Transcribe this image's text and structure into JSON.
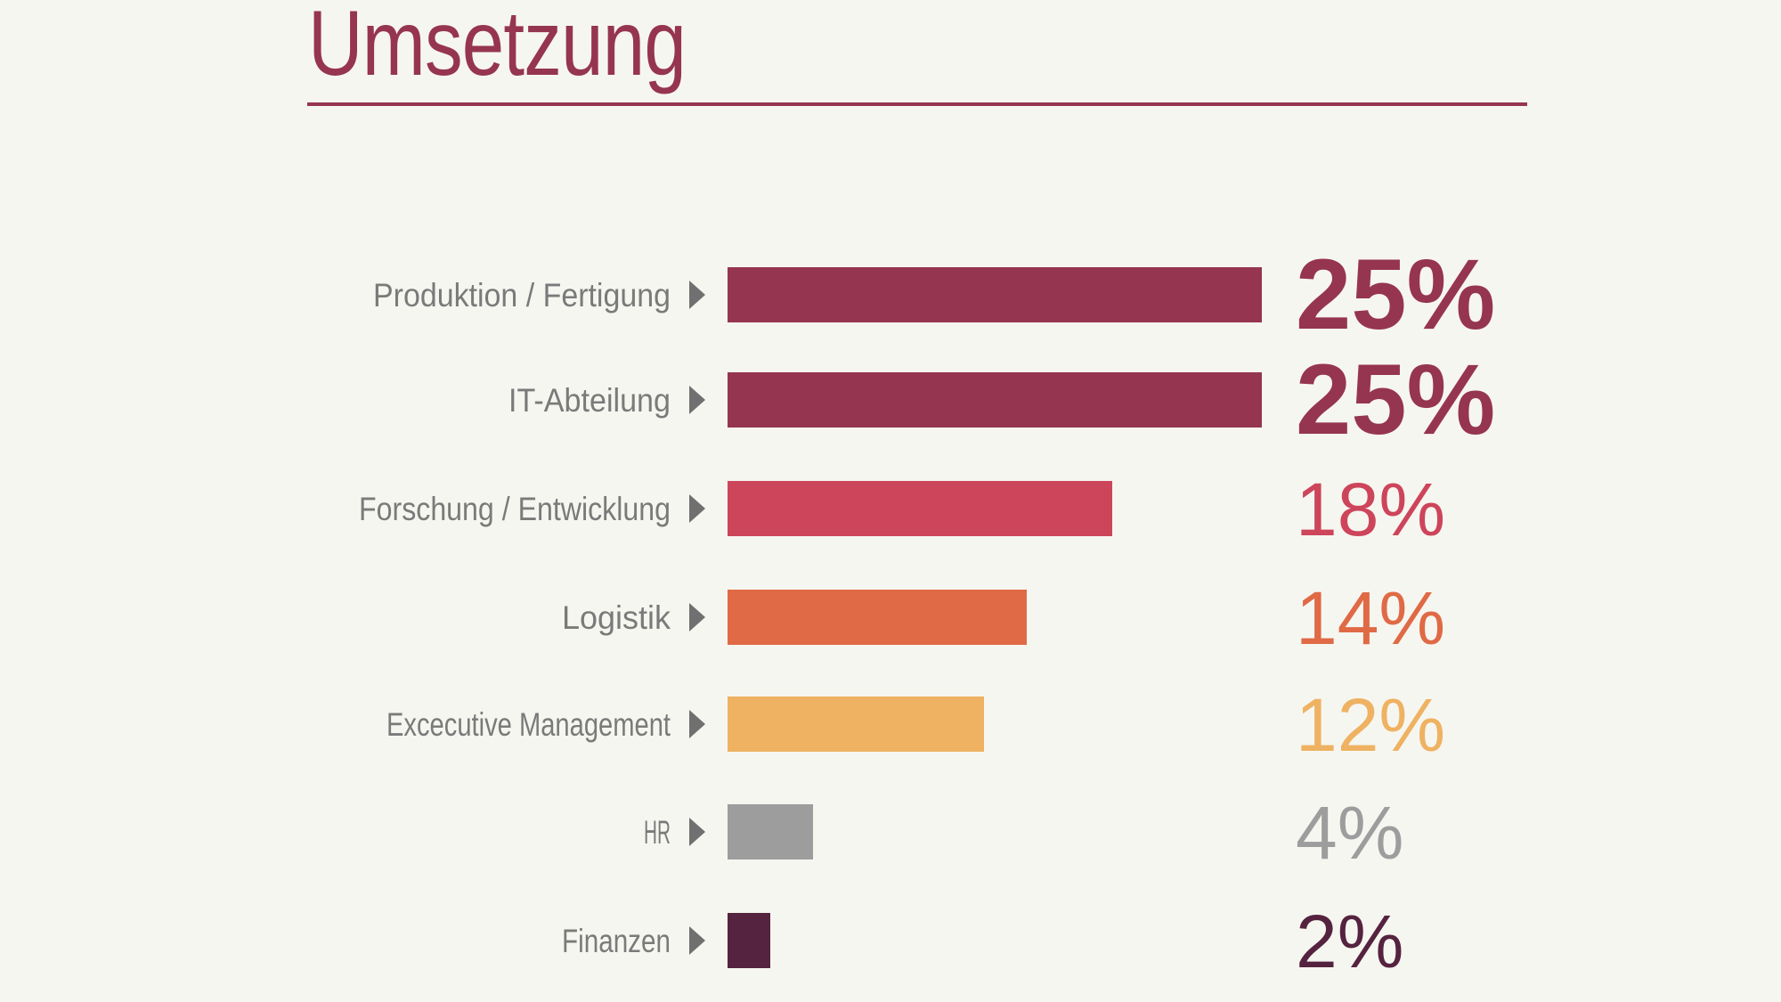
{
  "title": "Umsetzung",
  "colors": {
    "background": "#f6f6f0",
    "accent": "#96354f",
    "category_label": "#7a7a7a",
    "arrow": "#707070"
  },
  "chart_data": {
    "type": "bar",
    "orientation": "horizontal",
    "title": "",
    "categories": [
      "Produktion / Fertigung",
      "IT-Abteilung",
      "Forschung / Entwicklung",
      "Logistik",
      "Excecutive Management",
      "HR",
      "Finanzen"
    ],
    "values": [
      25,
      25,
      18,
      14,
      12,
      4,
      2
    ],
    "value_labels": [
      "25%",
      "25%",
      "18%",
      "14%",
      "12%",
      "4%",
      "2%"
    ],
    "bar_colors": [
      "#96354f",
      "#96354f",
      "#cd455b",
      "#df6a45",
      "#eeb262",
      "#9d9d9d",
      "#55233f"
    ],
    "xlim": [
      0,
      25
    ],
    "unit": "%",
    "grid": false,
    "legend": "none",
    "category_marker": "right-pointing-triangle-icon"
  }
}
